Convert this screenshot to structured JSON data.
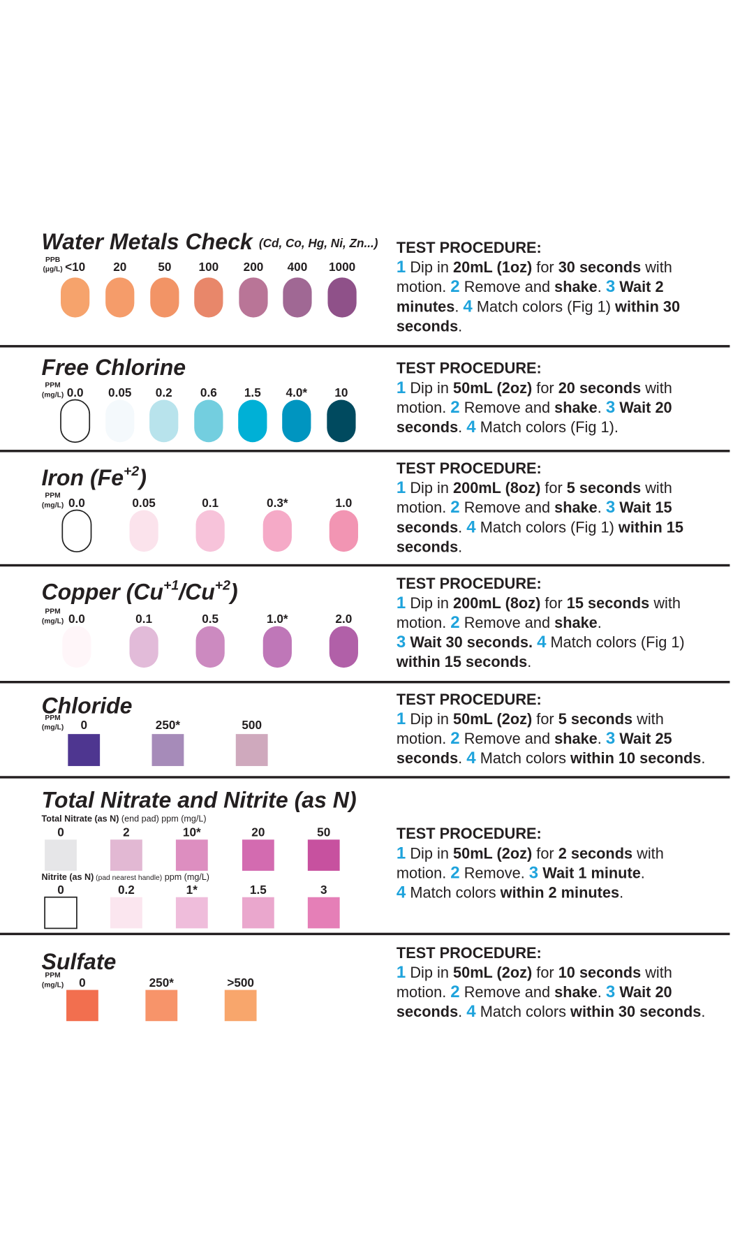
{
  "highlight_color": "#e8202a",
  "step_color": "#1ea3dc",
  "sections": [
    {
      "title": [
        {
          "t": "Water Metals Check"
        }
      ],
      "subtitle": "(Cd, Co, Hg, Ni, Zn...)",
      "unit": [
        "PPB",
        "(µg/L)"
      ],
      "shape": "pill",
      "swatches": [
        {
          "label": "<10",
          "color": "#f6a36c"
        },
        {
          "label": "20",
          "color": "#f59c6a"
        },
        {
          "label": "50",
          "color": "#f29466"
        },
        {
          "label": "100",
          "color": "#e8876a"
        },
        {
          "label": "200",
          "color": "#b97597"
        },
        {
          "label": "400",
          "color": "#a06894"
        },
        {
          "label": "1000",
          "color": "#8f5189"
        }
      ],
      "procedure": {
        "heading": "TEST PROCEDURE:",
        "lines": [
          [
            {
              "t": "1",
              "s": "step"
            },
            {
              "t": " Dip in "
            },
            {
              "t": "20mL (1oz)",
              "s": "bold"
            },
            {
              "t": " for "
            },
            {
              "t": "30 seconds",
              "s": "bold"
            },
            {
              "t": " with"
            }
          ],
          [
            {
              "t": "motion. "
            },
            {
              "t": "2",
              "s": "step"
            },
            {
              "t": " Remove and "
            },
            {
              "t": "shake",
              "s": "bold"
            },
            {
              "t": ". "
            },
            {
              "t": "3",
              "s": "step"
            },
            {
              "t": " Wait 2",
              "s": "bold"
            }
          ],
          [
            {
              "t": "minutes",
              "s": "bold"
            },
            {
              "t": ". "
            },
            {
              "t": "4",
              "s": "step"
            },
            {
              "t": " Match colors (Fig 1) "
            },
            {
              "t": "within 30",
              "s": "bold"
            }
          ],
          [
            {
              "t": "seconds",
              "s": "bold"
            },
            {
              "t": "."
            }
          ]
        ]
      }
    },
    {
      "title": [
        {
          "t": "Free Chlorine"
        }
      ],
      "unit": [
        "PPM",
        "(mg/L)"
      ],
      "shape": "pill",
      "swatches": [
        {
          "label": "0.0",
          "color": "#ffffff",
          "border": "#222222"
        },
        {
          "label": "0.05",
          "color": "#f4f9fc"
        },
        {
          "label": "0.2",
          "color": "#b8e3ec"
        },
        {
          "label": "0.6",
          "color": "#73cedf"
        },
        {
          "label": "1.5",
          "color": "#00b0d6"
        },
        {
          "label": "4.0*",
          "color": "#0095c0",
          "highlight": true
        },
        {
          "label": "10",
          "color": "#004a5f"
        }
      ],
      "procedure": {
        "heading": "TEST PROCEDURE:",
        "lines": [
          [
            {
              "t": "1",
              "s": "step"
            },
            {
              "t": " Dip in "
            },
            {
              "t": "50mL (2oz)",
              "s": "bold"
            },
            {
              "t": " for "
            },
            {
              "t": "20 seconds",
              "s": "bold"
            },
            {
              "t": " with"
            }
          ],
          [
            {
              "t": "motion. "
            },
            {
              "t": "2",
              "s": "step"
            },
            {
              "t": " Remove and "
            },
            {
              "t": "shake",
              "s": "bold"
            },
            {
              "t": ". "
            },
            {
              "t": "3",
              "s": "step"
            },
            {
              "t": " Wait 20",
              "s": "bold"
            }
          ],
          [
            {
              "t": "seconds",
              "s": "bold"
            },
            {
              "t": ". "
            },
            {
              "t": "4",
              "s": "step"
            },
            {
              "t": " Match colors (Fig 1)."
            }
          ]
        ]
      }
    },
    {
      "title": [
        {
          "t": "Iron (Fe"
        },
        {
          "t": "+2",
          "s": "sup"
        },
        {
          "t": ")"
        }
      ],
      "unit": [
        "PPM",
        "(mg/L)"
      ],
      "shape": "pill",
      "swatches": [
        {
          "label": "0.0",
          "color": "#ffffff",
          "border": "#222222"
        },
        {
          "label": "0.05",
          "color": "#fbe3ec"
        },
        {
          "label": "0.1",
          "color": "#f7c3da"
        },
        {
          "label": "0.3*",
          "color": "#f5aac7",
          "highlight": true
        },
        {
          "label": "1.0",
          "color": "#f295b3"
        }
      ],
      "procedure": {
        "heading": "TEST PROCEDURE:",
        "lines": [
          [
            {
              "t": "1",
              "s": "step"
            },
            {
              "t": " Dip in "
            },
            {
              "t": "200mL (8oz)",
              "s": "bold"
            },
            {
              "t": " for "
            },
            {
              "t": "5 seconds",
              "s": "bold"
            },
            {
              "t": " with"
            }
          ],
          [
            {
              "t": "motion. "
            },
            {
              "t": "2",
              "s": "step"
            },
            {
              "t": " Remove and "
            },
            {
              "t": "shake",
              "s": "bold"
            },
            {
              "t": ". "
            },
            {
              "t": "3",
              "s": "step"
            },
            {
              "t": " Wait 15",
              "s": "bold"
            }
          ],
          [
            {
              "t": "seconds",
              "s": "bold"
            },
            {
              "t": ". "
            },
            {
              "t": "4",
              "s": "step"
            },
            {
              "t": " Match colors (Fig 1) "
            },
            {
              "t": "within 15",
              "s": "bold"
            }
          ],
          [
            {
              "t": "seconds",
              "s": "bold"
            },
            {
              "t": "."
            }
          ]
        ]
      }
    },
    {
      "title": [
        {
          "t": "Copper (Cu"
        },
        {
          "t": "+1",
          "s": "sup"
        },
        {
          "t": "/Cu"
        },
        {
          "t": "+2",
          "s": "sup"
        },
        {
          "t": ")"
        }
      ],
      "unit": [
        "PPM",
        "(mg/L)"
      ],
      "shape": "pill",
      "swatches": [
        {
          "label": "0.0",
          "color": "#fff6f9"
        },
        {
          "label": "0.1",
          "color": "#e2bbd9"
        },
        {
          "label": "0.5",
          "color": "#cc8ac0"
        },
        {
          "label": "1.0*",
          "color": "#bf77b8",
          "highlight": true
        },
        {
          "label": "2.0",
          "color": "#b160a8"
        }
      ],
      "procedure": {
        "heading": "TEST PROCEDURE:",
        "lines": [
          [
            {
              "t": "1",
              "s": "step"
            },
            {
              "t": " Dip in "
            },
            {
              "t": "200mL (8oz)",
              "s": "bold"
            },
            {
              "t": " for "
            },
            {
              "t": "15 seconds",
              "s": "bold"
            },
            {
              "t": " with"
            }
          ],
          [
            {
              "t": "motion. "
            },
            {
              "t": "2",
              "s": "step"
            },
            {
              "t": " Remove and "
            },
            {
              "t": "shake",
              "s": "bold"
            },
            {
              "t": "."
            }
          ],
          [
            {
              "t": "3",
              "s": "step"
            },
            {
              "t": " Wait 30 seconds.",
              "s": "bold"
            },
            {
              "t": " "
            },
            {
              "t": "4",
              "s": "step"
            },
            {
              "t": " Match colors (Fig 1)"
            }
          ],
          [
            {
              "t": "within 15 seconds",
              "s": "bold"
            },
            {
              "t": "."
            }
          ]
        ]
      }
    },
    {
      "title": [
        {
          "t": "Chloride"
        }
      ],
      "unit": [
        "PPM",
        "(mg/L)"
      ],
      "shape": "square",
      "swatches": [
        {
          "label": "0",
          "color": "#4e3690"
        },
        {
          "label": "250*",
          "color": "#a68bb9",
          "highlight": true
        },
        {
          "label": "500",
          "color": "#cfa9bd"
        }
      ],
      "procedure": {
        "heading": "TEST PROCEDURE:",
        "lines": [
          [
            {
              "t": "1",
              "s": "step"
            },
            {
              "t": " Dip in "
            },
            {
              "t": "50mL (2oz)",
              "s": "bold"
            },
            {
              "t": " for "
            },
            {
              "t": "5 seconds",
              "s": "bold"
            },
            {
              "t": " with"
            }
          ],
          [
            {
              "t": "motion. "
            },
            {
              "t": "2",
              "s": "step"
            },
            {
              "t": " Remove and "
            },
            {
              "t": "shake",
              "s": "bold"
            },
            {
              "t": ". "
            },
            {
              "t": "3",
              "s": "step"
            },
            {
              "t": " Wait 25",
              "s": "bold"
            }
          ],
          [
            {
              "t": "seconds",
              "s": "bold"
            },
            {
              "t": ". "
            },
            {
              "t": "4",
              "s": "step"
            },
            {
              "t": " Match colors "
            },
            {
              "t": "within 10 seconds",
              "s": "bold"
            },
            {
              "t": "."
            }
          ]
        ]
      }
    },
    {
      "title": [
        {
          "t": "Total Nitrate and Nitrite (as N)"
        }
      ],
      "shape": "square",
      "rows": [
        {
          "label": [
            {
              "t": "Total Nitrate (as N)",
              "s": "bold"
            },
            {
              "t": " (end pad) ppm (mg/L)"
            }
          ],
          "swatches": [
            {
              "label": "0",
              "color": "#e6e6e8"
            },
            {
              "label": "2",
              "color": "#e2b8d3"
            },
            {
              "label": "10*",
              "color": "#dd8ec0",
              "highlight": true
            },
            {
              "label": "20",
              "color": "#d36bb0"
            },
            {
              "label": "50",
              "color": "#c7519f"
            }
          ]
        },
        {
          "label": [
            {
              "t": "Nitrite (as N)",
              "s": "bold"
            },
            {
              "t": " (pad nearest handle)",
              "s": "small"
            },
            {
              "t": " ppm (mg/L)"
            }
          ],
          "swatches": [
            {
              "label": "0",
              "color": "#ffffff",
              "border": "#222222"
            },
            {
              "label": "0.2",
              "color": "#fbe6ef"
            },
            {
              "label": "1*",
              "color": "#efbddb",
              "highlight": true
            },
            {
              "label": "1.5",
              "color": "#eaa7cd"
            },
            {
              "label": "3",
              "color": "#e57fb7"
            }
          ]
        }
      ],
      "procedure": {
        "heading": "TEST PROCEDURE:",
        "lines": [
          [
            {
              "t": "1",
              "s": "step"
            },
            {
              "t": " Dip in "
            },
            {
              "t": "50mL (2oz)",
              "s": "bold"
            },
            {
              "t": " for "
            },
            {
              "t": "2 seconds",
              "s": "bold"
            },
            {
              "t": " with"
            }
          ],
          [
            {
              "t": "motion. "
            },
            {
              "t": "2",
              "s": "step"
            },
            {
              "t": " Remove. "
            },
            {
              "t": "3",
              "s": "step"
            },
            {
              "t": " Wait 1 minute",
              "s": "bold"
            },
            {
              "t": "."
            }
          ],
          [
            {
              "t": "4",
              "s": "step"
            },
            {
              "t": " Match colors "
            },
            {
              "t": "within 2 minutes",
              "s": "bold"
            },
            {
              "t": "."
            }
          ]
        ]
      }
    },
    {
      "title": [
        {
          "t": "Sulfate"
        }
      ],
      "unit": [
        "PPM",
        "(mg/L)"
      ],
      "shape": "square",
      "swatches": [
        {
          "label": "0",
          "color": "#f26f4f"
        },
        {
          "label": "250*",
          "color": "#f7946a",
          "highlight": true
        },
        {
          "label": ">500",
          "color": "#f8a66c"
        }
      ],
      "procedure": {
        "heading": "TEST PROCEDURE:",
        "lines": [
          [
            {
              "t": "1",
              "s": "step"
            },
            {
              "t": " Dip in "
            },
            {
              "t": "50mL (2oz)",
              "s": "bold"
            },
            {
              "t": " for "
            },
            {
              "t": "10 seconds",
              "s": "bold"
            },
            {
              "t": " with"
            }
          ],
          [
            {
              "t": "motion. "
            },
            {
              "t": "2",
              "s": "step"
            },
            {
              "t": " Remove and "
            },
            {
              "t": "shake",
              "s": "bold"
            },
            {
              "t": ". "
            },
            {
              "t": "3",
              "s": "step"
            },
            {
              "t": " Wait 20",
              "s": "bold"
            }
          ],
          [
            {
              "t": "seconds",
              "s": "bold"
            },
            {
              "t": ". "
            },
            {
              "t": "4",
              "s": "step"
            },
            {
              "t": " Match colors "
            },
            {
              "t": "within 30 seconds",
              "s": "bold"
            },
            {
              "t": "."
            }
          ]
        ]
      }
    }
  ]
}
